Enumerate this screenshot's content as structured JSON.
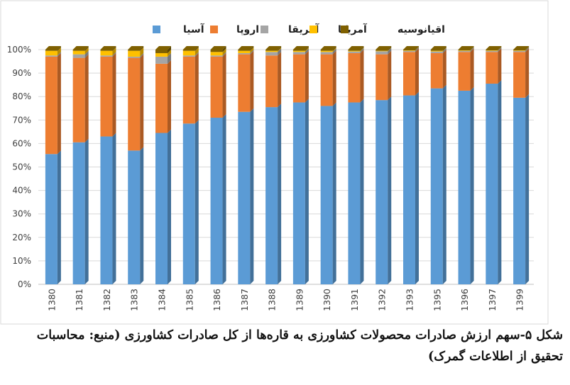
{
  "chart_data": {
    "type": "stacked-bar-100-3d",
    "categories": [
      "1380",
      "1381",
      "1382",
      "1383",
      "1384",
      "1385",
      "1386",
      "1387",
      "1388",
      "1389",
      "1390",
      "1391",
      "1392",
      "1393",
      "1395",
      "1396",
      "1397",
      "1399"
    ],
    "series": [
      {
        "name": "آسیا",
        "color": "#5B9BD5",
        "values": [
          55.5,
          60.5,
          63,
          57,
          64.5,
          68.5,
          71,
          73.5,
          75.5,
          77.5,
          76,
          77.5,
          78.5,
          80.5,
          83.5,
          82.5,
          85.5,
          79.5
        ]
      },
      {
        "name": "اروپا",
        "color": "#ED7D31",
        "values": [
          41.5,
          36,
          34,
          39.5,
          29.5,
          28.5,
          26,
          24.5,
          22,
          20.5,
          22,
          21,
          19.5,
          18.5,
          15,
          16.5,
          13.5,
          19.5
        ]
      },
      {
        "name": "آفریقا",
        "color": "#A5A5A5",
        "values": [
          0.5,
          1.5,
          0.5,
          0.5,
          3,
          0.5,
          0.5,
          0.5,
          1.5,
          1,
          1,
          0.7,
          1.3,
          0.5,
          0.7,
          0.5,
          0.5,
          0.5
        ]
      },
      {
        "name": "آمریکا",
        "color": "#FFC000",
        "values": [
          2,
          1.5,
          2,
          2.5,
          1.5,
          2,
          1.5,
          1,
          0.5,
          0.5,
          0.5,
          0.3,
          0.2,
          0.2,
          0.3,
          0.2,
          0.2,
          0.2
        ]
      },
      {
        "name": "اقیانوسیه",
        "color": "#7F6000",
        "values": [
          0.5,
          0.5,
          0.5,
          0.5,
          1.5,
          0.5,
          1,
          0.5,
          0.5,
          0.5,
          0.5,
          0.5,
          0.5,
          0.3,
          0.5,
          0.3,
          0.3,
          0.3
        ]
      }
    ],
    "yticks": [
      "0%",
      "10%",
      "20%",
      "30%",
      "40%",
      "50%",
      "60%",
      "70%",
      "80%",
      "90%",
      "100%"
    ],
    "ylim": [
      0,
      100
    ],
    "grid": true,
    "legend_position": "top",
    "title": "",
    "xlabel": "",
    "ylabel": ""
  },
  "caption": {
    "text": "شکل ۵-سهم ارزش صادرات محصولات کشاورزی به قاره‌ها از کل صادرات کشاورزی (منبع: محاسبات تحقیق از اطلاعات گمرک)"
  }
}
